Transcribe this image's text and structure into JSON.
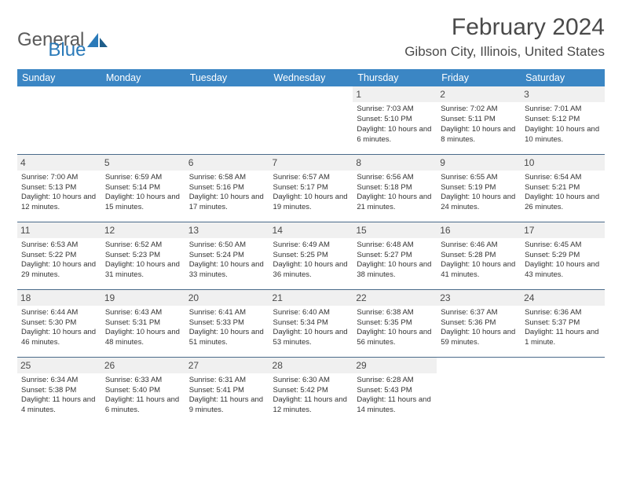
{
  "logo": {
    "text1": "General",
    "text2": "Blue"
  },
  "title": "February 2024",
  "location": "Gibson City, Illinois, United States",
  "colors": {
    "header_bg": "#3b86c4",
    "header_text": "#ffffff",
    "daynum_bg": "#f0f0f0",
    "row_border": "#4a6a8a",
    "logo_gray": "#5a5a5a",
    "logo_blue": "#2a7ab9",
    "text": "#333333"
  },
  "daysOfWeek": [
    "Sunday",
    "Monday",
    "Tuesday",
    "Wednesday",
    "Thursday",
    "Friday",
    "Saturday"
  ],
  "weeks": [
    [
      null,
      null,
      null,
      null,
      {
        "n": "1",
        "sr": "7:03 AM",
        "ss": "5:10 PM",
        "dl": "10 hours and 6 minutes."
      },
      {
        "n": "2",
        "sr": "7:02 AM",
        "ss": "5:11 PM",
        "dl": "10 hours and 8 minutes."
      },
      {
        "n": "3",
        "sr": "7:01 AM",
        "ss": "5:12 PM",
        "dl": "10 hours and 10 minutes."
      }
    ],
    [
      {
        "n": "4",
        "sr": "7:00 AM",
        "ss": "5:13 PM",
        "dl": "10 hours and 12 minutes."
      },
      {
        "n": "5",
        "sr": "6:59 AM",
        "ss": "5:14 PM",
        "dl": "10 hours and 15 minutes."
      },
      {
        "n": "6",
        "sr": "6:58 AM",
        "ss": "5:16 PM",
        "dl": "10 hours and 17 minutes."
      },
      {
        "n": "7",
        "sr": "6:57 AM",
        "ss": "5:17 PM",
        "dl": "10 hours and 19 minutes."
      },
      {
        "n": "8",
        "sr": "6:56 AM",
        "ss": "5:18 PM",
        "dl": "10 hours and 21 minutes."
      },
      {
        "n": "9",
        "sr": "6:55 AM",
        "ss": "5:19 PM",
        "dl": "10 hours and 24 minutes."
      },
      {
        "n": "10",
        "sr": "6:54 AM",
        "ss": "5:21 PM",
        "dl": "10 hours and 26 minutes."
      }
    ],
    [
      {
        "n": "11",
        "sr": "6:53 AM",
        "ss": "5:22 PM",
        "dl": "10 hours and 29 minutes."
      },
      {
        "n": "12",
        "sr": "6:52 AM",
        "ss": "5:23 PM",
        "dl": "10 hours and 31 minutes."
      },
      {
        "n": "13",
        "sr": "6:50 AM",
        "ss": "5:24 PM",
        "dl": "10 hours and 33 minutes."
      },
      {
        "n": "14",
        "sr": "6:49 AM",
        "ss": "5:25 PM",
        "dl": "10 hours and 36 minutes."
      },
      {
        "n": "15",
        "sr": "6:48 AM",
        "ss": "5:27 PM",
        "dl": "10 hours and 38 minutes."
      },
      {
        "n": "16",
        "sr": "6:46 AM",
        "ss": "5:28 PM",
        "dl": "10 hours and 41 minutes."
      },
      {
        "n": "17",
        "sr": "6:45 AM",
        "ss": "5:29 PM",
        "dl": "10 hours and 43 minutes."
      }
    ],
    [
      {
        "n": "18",
        "sr": "6:44 AM",
        "ss": "5:30 PM",
        "dl": "10 hours and 46 minutes."
      },
      {
        "n": "19",
        "sr": "6:43 AM",
        "ss": "5:31 PM",
        "dl": "10 hours and 48 minutes."
      },
      {
        "n": "20",
        "sr": "6:41 AM",
        "ss": "5:33 PM",
        "dl": "10 hours and 51 minutes."
      },
      {
        "n": "21",
        "sr": "6:40 AM",
        "ss": "5:34 PM",
        "dl": "10 hours and 53 minutes."
      },
      {
        "n": "22",
        "sr": "6:38 AM",
        "ss": "5:35 PM",
        "dl": "10 hours and 56 minutes."
      },
      {
        "n": "23",
        "sr": "6:37 AM",
        "ss": "5:36 PM",
        "dl": "10 hours and 59 minutes."
      },
      {
        "n": "24",
        "sr": "6:36 AM",
        "ss": "5:37 PM",
        "dl": "11 hours and 1 minute."
      }
    ],
    [
      {
        "n": "25",
        "sr": "6:34 AM",
        "ss": "5:38 PM",
        "dl": "11 hours and 4 minutes."
      },
      {
        "n": "26",
        "sr": "6:33 AM",
        "ss": "5:40 PM",
        "dl": "11 hours and 6 minutes."
      },
      {
        "n": "27",
        "sr": "6:31 AM",
        "ss": "5:41 PM",
        "dl": "11 hours and 9 minutes."
      },
      {
        "n": "28",
        "sr": "6:30 AM",
        "ss": "5:42 PM",
        "dl": "11 hours and 12 minutes."
      },
      {
        "n": "29",
        "sr": "6:28 AM",
        "ss": "5:43 PM",
        "dl": "11 hours and 14 minutes."
      },
      null,
      null
    ]
  ],
  "labels": {
    "sunrise": "Sunrise: ",
    "sunset": "Sunset: ",
    "daylight": "Daylight: "
  }
}
